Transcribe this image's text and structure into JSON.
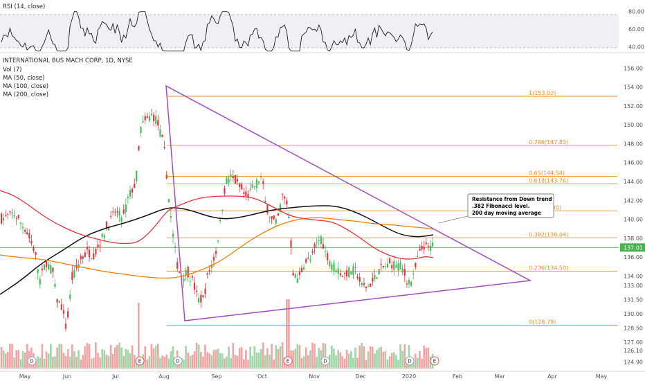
{
  "chart_data": {
    "type": "candlestick",
    "symbol_title": "INTERNATIONAL BUS MACH CORP, 1D, NYSE",
    "indicators": [
      "Vol (7)",
      "MA (50, close)",
      "MA (100, close)",
      "MA (200, close)"
    ],
    "rsi_label": "RSI (14, close)",
    "rsi_ticks": [
      "80.00",
      "60.00",
      "40.00"
    ],
    "rsi_range": [
      30,
      90
    ],
    "rsi_bands": [
      70,
      30
    ],
    "price_range": [
      124.2,
      157.2
    ],
    "price_ticks": [
      "156.00",
      "154.00",
      "152.00",
      "150.00",
      "148.00",
      "146.00",
      "144.00",
      "142.00",
      "140.00",
      "138.00",
      "137.01",
      "136.00",
      "134.00",
      "133.00",
      "131.50",
      "130.00",
      "128.50",
      "127.00",
      "126.10",
      "124.90"
    ],
    "x_ticks": [
      "May",
      "Jun",
      "Jul",
      "Aug",
      "Sep",
      "Oct",
      "Nov",
      "Dec",
      "2020",
      "Feb",
      "Mar",
      "Apr",
      "May"
    ],
    "last_price": 137.01,
    "fibonacci": [
      {
        "label": "1(153.02)",
        "price": 153.02
      },
      {
        "label": "0.786(147.83)",
        "price": 147.83
      },
      {
        "label": "0.65(144.54)",
        "price": 144.54
      },
      {
        "label": "0.618(143.76)",
        "price": 143.76
      },
      {
        "label": "0.5(140.90)",
        "price": 140.9
      },
      {
        "label": "0.382(138.04)",
        "price": 138.04
      },
      {
        "label": "0.236(134.50)",
        "price": 134.5
      },
      {
        "label": "0(128.79)",
        "price": 128.79
      }
    ],
    "annotation": [
      "Resistance from Down trend",
      ".382 Fibonacci level.",
      "200 day moving average"
    ],
    "event_markers": [
      {
        "label": "D",
        "date": "May"
      },
      {
        "label": "E",
        "date": "Jul"
      },
      {
        "label": "D",
        "date": "Aug"
      },
      {
        "label": "E",
        "date": "Oct"
      },
      {
        "label": "D",
        "date": "Nov"
      },
      {
        "label": "D",
        "date": "2020"
      },
      {
        "label": "E",
        "date": "Jan"
      }
    ],
    "colors": {
      "up": "#26a69a",
      "down": "#ef5350",
      "candle_up": "#3fbf57",
      "candle_down": "#e8313b",
      "ma50": "#e8313b",
      "ma100": "#f57c00",
      "ma200": "#111111",
      "triangle": "#a34cc1",
      "fib": "#f28a1e",
      "price_line": "#4caf50",
      "rsi": "#1a1a1a"
    }
  }
}
